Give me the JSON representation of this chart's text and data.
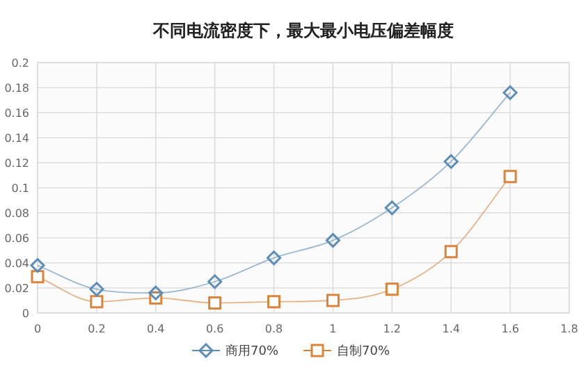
{
  "chart_data": {
    "type": "line",
    "title": "不同电流密度下，最大最小电压偏差幅度",
    "x": [
      0,
      0.2,
      0.4,
      0.6,
      0.8,
      1,
      1.2,
      1.4,
      1.6
    ],
    "series": [
      {
        "name": "商用70%",
        "color": "#5b8db8",
        "marker": "diamond",
        "values": [
          0.038,
          0.019,
          0.016,
          0.025,
          0.044,
          0.058,
          0.084,
          0.121,
          0.176
        ]
      },
      {
        "name": "自制70%",
        "color": "#d9843a",
        "marker": "square",
        "values": [
          0.029,
          0.009,
          0.012,
          0.008,
          0.009,
          0.01,
          0.019,
          0.049,
          0.109
        ]
      }
    ],
    "xlim": [
      0,
      1.8
    ],
    "xticks": [
      0,
      0.2,
      0.4,
      0.6,
      0.8,
      1,
      1.2,
      1.4,
      1.6,
      1.8
    ],
    "ylim": [
      0,
      0.2
    ],
    "yticks": [
      0,
      0.02,
      0.04,
      0.06,
      0.08,
      0.1,
      0.12,
      0.14,
      0.16,
      0.18,
      0.2
    ],
    "grid": true,
    "legend": "bottom"
  }
}
